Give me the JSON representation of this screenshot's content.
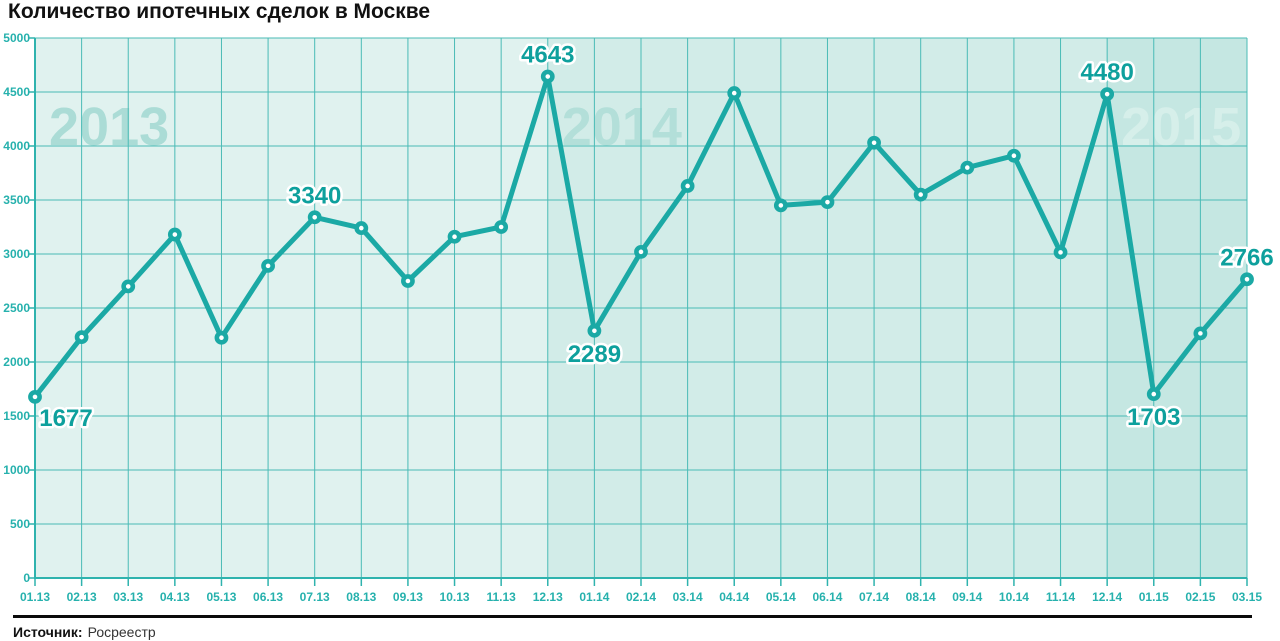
{
  "title": "Количество ипотечных сделок в Москве",
  "source": {
    "label": "Источник:",
    "value": "Росреестр"
  },
  "chart_data": {
    "type": "line",
    "title": "Количество ипотечных сделок в Москве",
    "xlabel": "",
    "ylabel": "",
    "ylim": [
      0,
      5000
    ],
    "y_ticks": [
      0,
      500,
      1000,
      1500,
      2000,
      2500,
      3000,
      3500,
      4000,
      4500,
      5000
    ],
    "grid": true,
    "categories": [
      "01.13",
      "02.13",
      "03.13",
      "04.13",
      "05.13",
      "06.13",
      "07.13",
      "08.13",
      "09.13",
      "10.13",
      "11.13",
      "12.13",
      "01.14",
      "02.14",
      "03.14",
      "04.14",
      "05.14",
      "06.14",
      "07.14",
      "08.14",
      "09.14",
      "10.14",
      "11.14",
      "12.14",
      "01.15",
      "02.15",
      "03.15"
    ],
    "values": [
      1677,
      2230,
      2700,
      3180,
      2225,
      2890,
      3340,
      3240,
      2750,
      3160,
      3250,
      4643,
      2289,
      3020,
      3630,
      4490,
      3450,
      3480,
      4030,
      3550,
      3800,
      3910,
      3015,
      4480,
      1703,
      2265,
      2766
    ],
    "labeled_points": [
      {
        "index": 0,
        "text": "1677",
        "position": "below-right"
      },
      {
        "index": 6,
        "text": "3340",
        "position": "above"
      },
      {
        "index": 11,
        "text": "4643",
        "position": "above"
      },
      {
        "index": 12,
        "text": "2289",
        "position": "below"
      },
      {
        "index": 23,
        "text": "4480",
        "position": "above"
      },
      {
        "index": 24,
        "text": "1703",
        "position": "below"
      },
      {
        "index": 26,
        "text": "2766",
        "position": "above"
      }
    ],
    "year_bands": [
      {
        "label": "2013",
        "start_index": 0,
        "end_index": 11,
        "band_color": "#E0F2EF",
        "label_color": "#ABDCD6"
      },
      {
        "label": "2014",
        "start_index": 11,
        "end_index": 23,
        "band_color": "#D2ECE8",
        "label_color": "#B3DFD9"
      },
      {
        "label": "2015",
        "start_index": 23,
        "end_index": 26,
        "band_color": "#C5E7E2",
        "label_color": "#D6EFEA"
      }
    ],
    "colors": {
      "line": "#1BA9A5",
      "point_fill": "#FFFFFF",
      "grid": "#4ABBB6",
      "axis": "#2FB3AE",
      "tick_label": "#26B1AD",
      "value_label": "#0EA09D",
      "value_label_halo": "#FFFFFF",
      "title": "#111111",
      "separator": "#0A0A0A"
    }
  }
}
